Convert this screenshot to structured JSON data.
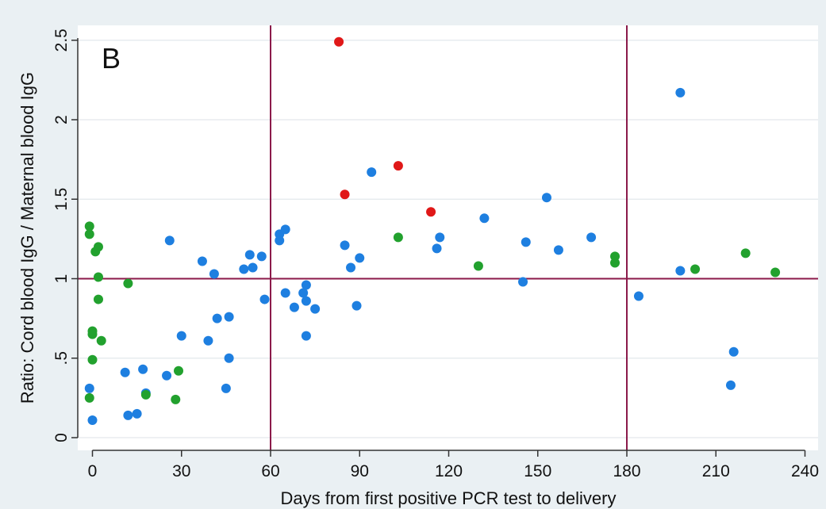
{
  "chart_data": {
    "type": "scatter",
    "panel_label": "B",
    "xlabel": "Days from first positive PCR test to delivery",
    "ylabel": "Ratio: Cord blood IgG / Maternal blood IgG",
    "xlim": [
      -3,
      242
    ],
    "ylim": [
      -0.08,
      2.58
    ],
    "x_ticks": [
      0,
      30,
      60,
      90,
      120,
      150,
      180,
      210,
      240
    ],
    "x_tick_labels": [
      "0",
      "30",
      "60",
      "90",
      "120",
      "150",
      "180",
      "210",
      "240"
    ],
    "y_ticks": [
      0,
      0.5,
      1,
      1.5,
      2,
      2.5
    ],
    "y_tick_labels": [
      "0",
      ".5",
      "1",
      "1.5",
      "2",
      "2.5"
    ],
    "grid": true,
    "reference_lines": {
      "x": [
        60,
        180
      ],
      "y": [
        1
      ],
      "color": "#8b1a4a"
    },
    "colors": {
      "background": "#eaf0f3",
      "plot_area": "#ffffff",
      "grid": "#e3e8ec",
      "axis": "#333333"
    },
    "series": [
      {
        "color": "#1e7fe0",
        "points": [
          [
            -1,
            0.31
          ],
          [
            0,
            0.11
          ],
          [
            11,
            0.41
          ],
          [
            12,
            0.14
          ],
          [
            15,
            0.15
          ],
          [
            17,
            0.43
          ],
          [
            18,
            0.28
          ],
          [
            25,
            0.39
          ],
          [
            26,
            1.24
          ],
          [
            30,
            0.64
          ],
          [
            37,
            1.11
          ],
          [
            39,
            0.61
          ],
          [
            41,
            1.03
          ],
          [
            42,
            0.75
          ],
          [
            45,
            0.31
          ],
          [
            46,
            0.76
          ],
          [
            46,
            0.5
          ],
          [
            51,
            1.06
          ],
          [
            53,
            1.15
          ],
          [
            54,
            1.07
          ],
          [
            57,
            1.14
          ],
          [
            58,
            0.87
          ],
          [
            63,
            1.24
          ],
          [
            63,
            1.28
          ],
          [
            65,
            1.31
          ],
          [
            65,
            0.91
          ],
          [
            68,
            0.82
          ],
          [
            71,
            0.91
          ],
          [
            72,
            0.86
          ],
          [
            72,
            0.64
          ],
          [
            72,
            0.96
          ],
          [
            75,
            0.81
          ],
          [
            85,
            1.21
          ],
          [
            87,
            1.07
          ],
          [
            89,
            0.83
          ],
          [
            90,
            1.13
          ],
          [
            94,
            1.67
          ],
          [
            116,
            1.19
          ],
          [
            117,
            1.26
          ],
          [
            132,
            1.38
          ],
          [
            145,
            0.98
          ],
          [
            146,
            1.23
          ],
          [
            153,
            1.51
          ],
          [
            157,
            1.18
          ],
          [
            168,
            1.26
          ],
          [
            184,
            0.89
          ],
          [
            198,
            2.17
          ],
          [
            198,
            1.05
          ],
          [
            215,
            0.33
          ],
          [
            216,
            0.54
          ]
        ]
      },
      {
        "color": "#22a12e",
        "points": [
          [
            -1,
            1.33
          ],
          [
            -1,
            1.28
          ],
          [
            -1,
            0.25
          ],
          [
            0,
            0.67
          ],
          [
            0,
            0.65
          ],
          [
            0,
            0.49
          ],
          [
            1,
            1.17
          ],
          [
            2,
            1.2
          ],
          [
            2,
            1.01
          ],
          [
            2,
            0.87
          ],
          [
            3,
            0.61
          ],
          [
            12,
            0.97
          ],
          [
            18,
            0.27
          ],
          [
            28,
            0.24
          ],
          [
            29,
            0.42
          ],
          [
            103,
            1.26
          ],
          [
            130,
            1.08
          ],
          [
            176,
            1.14
          ],
          [
            176,
            1.1
          ],
          [
            203,
            1.06
          ],
          [
            220,
            1.16
          ],
          [
            230,
            1.04
          ]
        ]
      },
      {
        "color": "#e01818",
        "points": [
          [
            83,
            2.49
          ],
          [
            85,
            1.53
          ],
          [
            103,
            1.71
          ],
          [
            114,
            1.42
          ]
        ]
      }
    ]
  }
}
